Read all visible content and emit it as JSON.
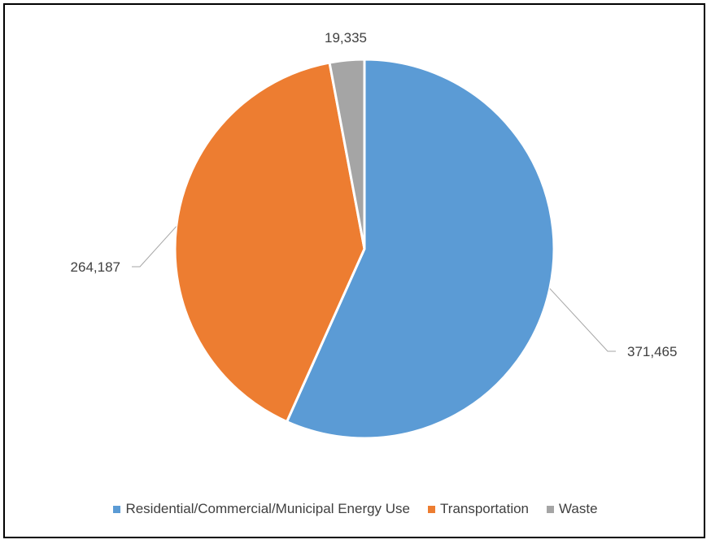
{
  "chart_data": {
    "type": "pie",
    "title": "",
    "categories": [
      "Residential/Commercial/Municipal Energy Use",
      "Transportation",
      "Waste"
    ],
    "values": [
      371465,
      264187,
      19335
    ],
    "value_labels": [
      "371,465",
      "264,187",
      "19,335"
    ],
    "colors": [
      "#5B9BD5",
      "#ED7D31",
      "#A5A5A5"
    ],
    "start_angle_deg": 0,
    "direction": "clockwise",
    "legend_position": "bottom",
    "show_data_labels": true
  }
}
